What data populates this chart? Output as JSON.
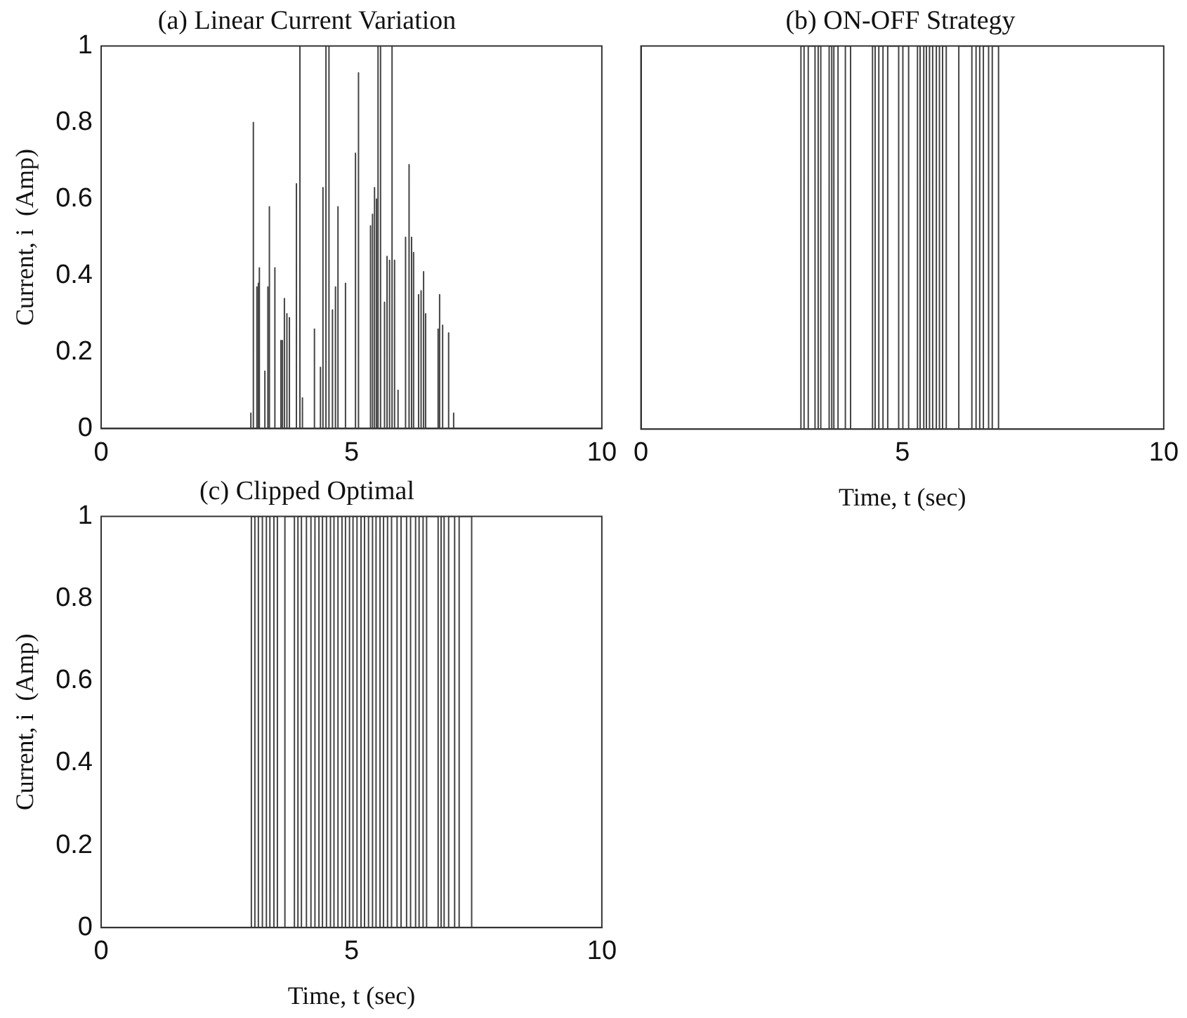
{
  "chart_data": [
    {
      "type": "line",
      "title": "(a) Linear Current Variation",
      "ylabel": "Current, i  (Amp)",
      "color": "#444444",
      "xlim": [
        0,
        10
      ],
      "ylim": [
        0,
        1
      ],
      "xticks": [
        0,
        5,
        10
      ],
      "yticks": [
        0,
        0.2,
        0.4,
        0.6,
        0.8,
        1
      ],
      "x": [
        0,
        2.99,
        2.99,
        2.99,
        3.04,
        3.04,
        3.04,
        3.11,
        3.11,
        3.11,
        3.14,
        3.14,
        3.14,
        3.16,
        3.16,
        3.16,
        3.27,
        3.27,
        3.27,
        3.33,
        3.33,
        3.33,
        3.36,
        3.36,
        3.36,
        3.47,
        3.47,
        3.47,
        3.59,
        3.59,
        3.59,
        3.62,
        3.62,
        3.62,
        3.66,
        3.66,
        3.66,
        3.71,
        3.71,
        3.71,
        3.76,
        3.76,
        3.76,
        3.9,
        3.9,
        3.9,
        3.97,
        3.97,
        3.97,
        4.02,
        4.02,
        4.02,
        4.26,
        4.26,
        4.26,
        4.38,
        4.38,
        4.38,
        4.43,
        4.43,
        4.43,
        4.49,
        4.49,
        4.49,
        4.55,
        4.55,
        4.55,
        4.62,
        4.62,
        4.62,
        4.68,
        4.68,
        4.68,
        4.73,
        4.73,
        4.73,
        4.88,
        4.88,
        4.88,
        5.08,
        5.08,
        5.08,
        5.14,
        5.14,
        5.14,
        5.38,
        5.38,
        5.38,
        5.42,
        5.42,
        5.42,
        5.46,
        5.46,
        5.46,
        5.5,
        5.5,
        5.5,
        5.53,
        5.53,
        5.53,
        5.58,
        5.58,
        5.58,
        5.66,
        5.66,
        5.66,
        5.71,
        5.71,
        5.71,
        5.76,
        5.76,
        5.76,
        5.81,
        5.81,
        5.81,
        5.86,
        5.86,
        5.86,
        5.93,
        5.93,
        5.93,
        6.08,
        6.08,
        6.08,
        6.15,
        6.15,
        6.15,
        6.2,
        6.2,
        6.2,
        6.24,
        6.24,
        6.24,
        6.34,
        6.34,
        6.34,
        6.39,
        6.39,
        6.39,
        6.44,
        6.44,
        6.44,
        6.48,
        6.48,
        6.48,
        6.73,
        6.73,
        6.73,
        6.76,
        6.76,
        6.76,
        6.82,
        6.82,
        6.82,
        6.94,
        6.94,
        6.94,
        7.04,
        7.04,
        7.04,
        10
      ],
      "values": [
        0,
        0,
        0.04,
        0,
        0,
        0.8,
        0,
        0,
        0.37,
        0,
        0,
        0.38,
        0,
        0,
        0.42,
        0,
        0,
        0.15,
        0,
        0,
        0.37,
        0,
        0,
        0.58,
        0,
        0,
        0.42,
        0,
        0,
        0.23,
        0,
        0,
        0.23,
        0,
        0,
        0.34,
        0,
        0,
        0.3,
        0,
        0,
        0.29,
        0,
        0,
        0.64,
        0,
        0,
        1,
        0,
        0,
        0.08,
        0,
        0,
        0.26,
        0,
        0,
        0.16,
        0,
        0,
        0.63,
        0,
        0,
        1,
        0,
        0,
        1,
        0,
        0,
        0.31,
        0,
        0,
        0.37,
        0,
        0,
        0.58,
        0,
        0,
        0.38,
        0,
        0,
        0.72,
        0,
        0,
        0.93,
        0,
        0,
        0.53,
        0,
        0,
        0.56,
        0,
        0,
        0.63,
        0,
        0,
        0.6,
        0,
        0,
        1,
        0,
        0,
        1,
        0,
        0,
        0.33,
        0,
        0,
        0.45,
        0,
        0,
        0.44,
        0,
        0,
        1,
        0,
        0,
        0.44,
        0,
        0,
        0.1,
        0,
        0,
        0.5,
        0,
        0,
        0.69,
        0,
        0,
        0.5,
        0,
        0,
        0.46,
        0,
        0,
        0.35,
        0,
        0,
        0.36,
        0,
        0,
        0.41,
        0,
        0,
        0.3,
        0,
        0,
        0.26,
        0,
        0,
        0.35,
        0,
        0,
        0.27,
        0,
        0,
        0.25,
        0,
        0,
        0.04,
        0,
        0
      ]
    },
    {
      "type": "step",
      "title": "(b) ON-OFF Strategy",
      "xlabel": "Time, t (sec)",
      "color": "#444444",
      "xlim": [
        0,
        10
      ],
      "ylim": [
        0,
        1
      ],
      "xticks": [
        0,
        5,
        10
      ],
      "yticks": [
        0,
        0.2,
        0.4,
        0.6,
        0.8,
        1
      ],
      "tick_labels": "x",
      "x": [
        0,
        3.06,
        3.12,
        3.2,
        3.33,
        3.39,
        3.44,
        3.6,
        3.65,
        3.69,
        3.77,
        3.91,
        4.01,
        4.43,
        4.48,
        4.55,
        4.63,
        4.72,
        4.93,
        5.01,
        5.12,
        5.29,
        5.34,
        5.41,
        5.46,
        5.52,
        5.58,
        5.65,
        5.71,
        5.77,
        5.84,
        6.08,
        6.33,
        6.41,
        6.48,
        6.55,
        6.65,
        6.72,
        6.84,
        10
      ],
      "values": [
        0,
        1,
        0,
        1,
        0,
        1,
        0,
        1,
        0,
        1,
        0,
        1,
        0,
        1,
        0,
        1,
        0,
        1,
        0,
        1,
        0,
        1,
        0,
        1,
        0,
        1,
        0,
        1,
        0,
        1,
        0,
        1,
        0,
        1,
        0,
        1,
        0,
        1,
        0,
        0
      ]
    },
    {
      "type": "step",
      "title": "(c) Clipped Optimal",
      "xlabel": "Time, t (sec)",
      "ylabel": "Current, i  (Amp)",
      "color": "#444444",
      "xlim": [
        0,
        10
      ],
      "ylim": [
        0,
        1
      ],
      "xticks": [
        0,
        5,
        10
      ],
      "yticks": [
        0,
        0.2,
        0.4,
        0.6,
        0.8,
        1
      ],
      "x": [
        0,
        3.0,
        3.07,
        3.14,
        3.22,
        3.3,
        3.37,
        3.45,
        3.52,
        3.67,
        3.86,
        3.93,
        4.0,
        4.1,
        4.19,
        4.27,
        4.35,
        4.42,
        4.5,
        4.58,
        4.65,
        4.73,
        4.81,
        4.88,
        4.96,
        5.03,
        5.11,
        5.19,
        5.26,
        5.34,
        5.42,
        5.49,
        5.57,
        5.64,
        5.72,
        5.8,
        5.91,
        5.99,
        6.1,
        6.18,
        6.28,
        6.35,
        6.43,
        6.5,
        6.73,
        6.79,
        6.85,
        6.94,
        7.06,
        7.15,
        7.4,
        10
      ],
      "values": [
        0,
        1,
        0,
        1,
        0,
        1,
        0,
        1,
        0,
        1,
        0,
        1,
        0,
        1,
        0,
        1,
        0,
        1,
        0,
        1,
        0,
        1,
        0,
        1,
        0,
        1,
        0,
        1,
        0,
        1,
        0,
        1,
        0,
        1,
        0,
        1,
        0,
        1,
        0,
        1,
        0,
        1,
        0,
        1,
        0,
        1,
        0,
        1,
        0,
        1,
        0,
        0
      ]
    }
  ]
}
